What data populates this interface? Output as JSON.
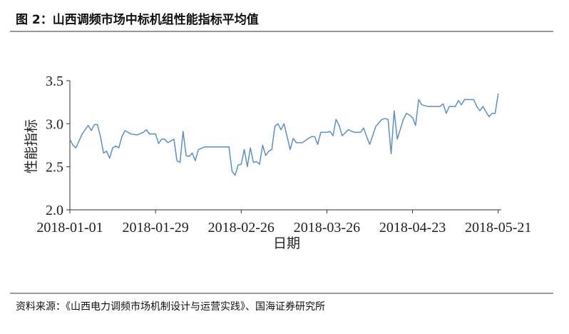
{
  "chart_data": {
    "type": "line",
    "title": "图 2：山西调频市场中标机组性能指标平均值",
    "source": "资料来源：《山西电力调频市场机制设计与运营实践》、国海证券研究所",
    "xlabel": "日期",
    "ylabel": "性能指标",
    "x": [
      "2018-01-01",
      "2018-01-02",
      "2018-01-03",
      "2018-01-05",
      "2018-01-07",
      "2018-01-08",
      "2018-01-09",
      "2018-01-10",
      "2018-01-11",
      "2018-01-12",
      "2018-01-13",
      "2018-01-14",
      "2018-01-15",
      "2018-01-16",
      "2018-01-17",
      "2018-01-18",
      "2018-01-19",
      "2018-01-21",
      "2018-01-23",
      "2018-01-25",
      "2018-01-26",
      "2018-01-27",
      "2018-01-29",
      "2018-01-30",
      "2018-01-31",
      "2018-02-01",
      "2018-02-02",
      "2018-02-03",
      "2018-02-04",
      "2018-02-05",
      "2018-02-06",
      "2018-02-07",
      "2018-02-08",
      "2018-02-09",
      "2018-02-10",
      "2018-02-11",
      "2018-02-12",
      "2018-02-14",
      "2018-02-17",
      "2018-02-20",
      "2018-02-22",
      "2018-02-23",
      "2018-02-24",
      "2018-02-25",
      "2018-02-26",
      "2018-02-27",
      "2018-02-28",
      "2018-03-01",
      "2018-03-02",
      "2018-03-03",
      "2018-03-04",
      "2018-03-05",
      "2018-03-06",
      "2018-03-07",
      "2018-03-08",
      "2018-03-09",
      "2018-03-10",
      "2018-03-11",
      "2018-03-12",
      "2018-03-14",
      "2018-03-15",
      "2018-03-16",
      "2018-03-18",
      "2018-03-20",
      "2018-03-21",
      "2018-03-22",
      "2018-03-23",
      "2018-03-24",
      "2018-03-26",
      "2018-03-27",
      "2018-03-28",
      "2018-03-29",
      "2018-03-30",
      "2018-03-31",
      "2018-04-02",
      "2018-04-04",
      "2018-04-06",
      "2018-04-07",
      "2018-04-08",
      "2018-04-09",
      "2018-04-11",
      "2018-04-13",
      "2018-04-14",
      "2018-04-15",
      "2018-04-16",
      "2018-04-17",
      "2018-04-18",
      "2018-04-20",
      "2018-04-21",
      "2018-04-22",
      "2018-04-23",
      "2018-04-24",
      "2018-04-25",
      "2018-04-26",
      "2018-04-28",
      "2018-04-30",
      "2018-05-02",
      "2018-05-03",
      "2018-05-04",
      "2018-05-05",
      "2018-05-07",
      "2018-05-08",
      "2018-05-09",
      "2018-05-10",
      "2018-05-13",
      "2018-05-14",
      "2018-05-15",
      "2018-05-16",
      "2018-05-18",
      "2018-05-19",
      "2018-05-20",
      "2018-05-21"
    ],
    "series": [
      {
        "name": "性能指标",
        "color": "#5b8fc9",
        "values": [
          2.82,
          2.75,
          2.72,
          2.88,
          2.98,
          2.92,
          2.99,
          2.99,
          2.85,
          2.66,
          2.68,
          2.6,
          2.72,
          2.74,
          2.72,
          2.85,
          2.92,
          2.88,
          2.87,
          2.9,
          2.93,
          2.88,
          2.88,
          2.77,
          2.82,
          2.82,
          2.78,
          2.8,
          2.82,
          2.57,
          2.55,
          2.91,
          2.63,
          2.62,
          2.66,
          2.57,
          2.7,
          2.73,
          2.73,
          2.73,
          2.73,
          2.45,
          2.4,
          2.52,
          2.53,
          2.7,
          2.5,
          2.72,
          2.55,
          2.56,
          2.53,
          2.75,
          2.63,
          2.68,
          2.7,
          2.97,
          3.0,
          2.93,
          3.0,
          2.7,
          2.83,
          2.78,
          2.78,
          2.83,
          2.85,
          2.85,
          2.76,
          2.9,
          2.9,
          2.91,
          2.86,
          3.05,
          2.98,
          2.86,
          2.93,
          2.9,
          2.9,
          2.95,
          2.85,
          2.76,
          2.97,
          3.05,
          3.06,
          3.05,
          2.65,
          3.15,
          2.82,
          3.05,
          3.12,
          3.1,
          3.07,
          2.98,
          3.28,
          3.22,
          3.2,
          3.2,
          3.2,
          3.23,
          3.12,
          3.2,
          3.2,
          3.27,
          3.22,
          3.28,
          3.28,
          3.2,
          3.15,
          3.2,
          3.08,
          3.12,
          3.12,
          3.35
        ]
      }
    ],
    "xlim": [
      "2018-01-01",
      "2018-05-22"
    ],
    "xticks": [
      "2018-01-01",
      "2018-01-29",
      "2018-02-26",
      "2018-03-26",
      "2018-04-23",
      "2018-05-21"
    ],
    "ylim": [
      2,
      3.5
    ],
    "yticks": [
      {
        "value": 2,
        "label": "2.0"
      },
      2.5,
      {
        "value": 3,
        "label": "3.0"
      },
      3.5
    ]
  }
}
